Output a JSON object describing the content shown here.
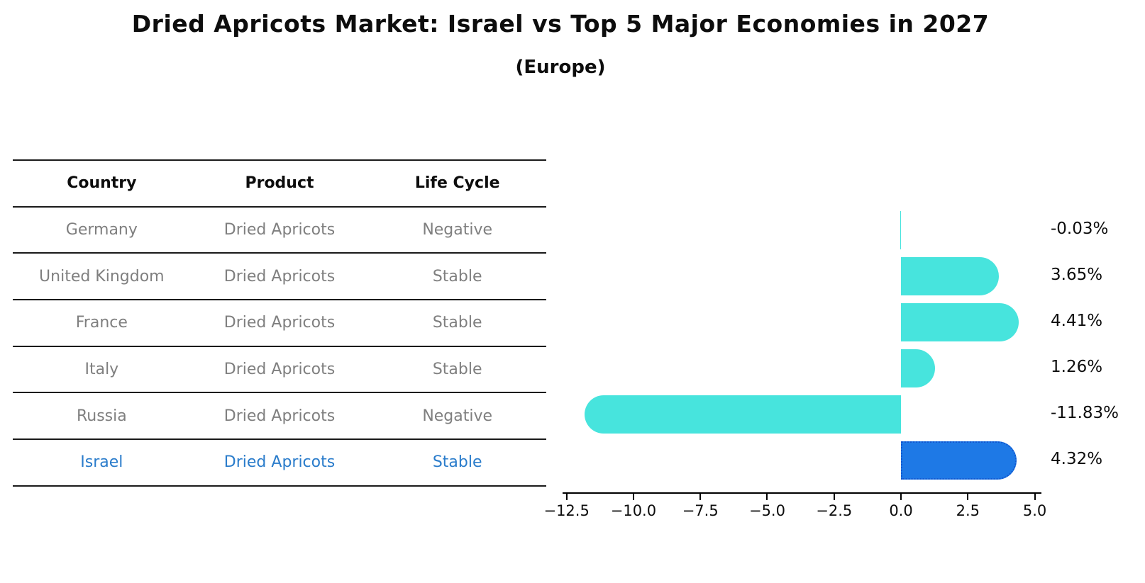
{
  "title": "Dried Apricots Market: Israel vs Top 5 Major Economies in 2027",
  "subtitle": "(Europe)",
  "table": {
    "headers": [
      "Country",
      "Product",
      "Life Cycle"
    ],
    "rows": [
      {
        "country": "Germany",
        "product": "Dried Apricots",
        "life_cycle": "Negative",
        "highlight": false
      },
      {
        "country": "United Kingdom",
        "product": "Dried Apricots",
        "life_cycle": "Stable",
        "highlight": false
      },
      {
        "country": "France",
        "product": "Dried Apricots",
        "life_cycle": "Stable",
        "highlight": false
      },
      {
        "country": "Italy",
        "product": "Dried Apricots",
        "life_cycle": "Stable",
        "highlight": false
      },
      {
        "country": "Russia",
        "product": "Dried Apricots",
        "life_cycle": "Negative",
        "highlight": false
      },
      {
        "country": "Israel",
        "product": "Dried Apricots",
        "life_cycle": "Stable",
        "highlight": true
      }
    ]
  },
  "chart_data": {
    "type": "bar",
    "orientation": "horizontal",
    "categories": [
      "Germany",
      "United Kingdom",
      "France",
      "Italy",
      "Russia",
      "Israel"
    ],
    "values": [
      -0.03,
      3.65,
      4.41,
      1.26,
      -11.83,
      4.32
    ],
    "value_labels": [
      "-0.03%",
      "3.65%",
      "4.41%",
      "1.26%",
      "-11.83%",
      "4.32%"
    ],
    "highlight_index": 5,
    "xlim": [
      -12.65,
      5.25
    ],
    "xticks": [
      -12.5,
      -10.0,
      -7.5,
      -5.0,
      -2.5,
      0.0,
      2.5,
      5.0
    ],
    "xtick_labels": [
      "−12.5",
      "−10.0",
      "−7.5",
      "−5.0",
      "−2.5",
      "0.0",
      "2.5",
      "5.0"
    ],
    "grid": false,
    "legend": false,
    "xlabel": "",
    "ylabel": ""
  },
  "colors": {
    "bar": "#47e4dd",
    "highlight_fill": "#1e79e6",
    "highlight_border": "#1257cf",
    "table_text": "#7f7f7f",
    "highlight_text": "#2a7ccb",
    "line": "#1a1a1a",
    "text": "#0d0d0d"
  }
}
